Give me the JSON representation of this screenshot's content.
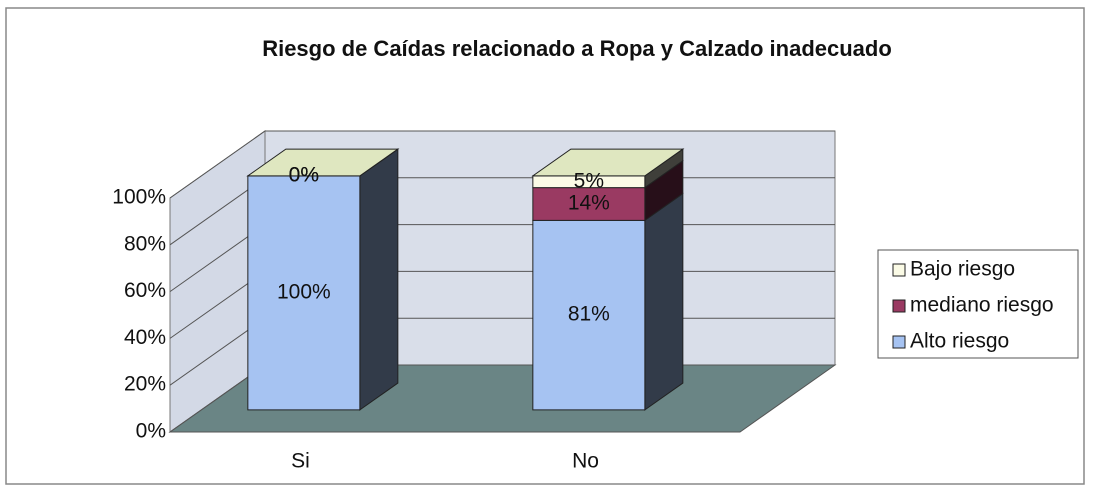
{
  "chart_data": {
    "type": "bar3d_stacked",
    "title": "Riesgo de Caídas relacionado a Ropa y Calzado inadecuado",
    "categories": [
      "Si",
      "No"
    ],
    "series": [
      {
        "name": "Alto riesgo",
        "color": "#a6c3f2",
        "values": [
          100,
          81
        ],
        "value_labels": [
          "100%",
          "81%"
        ]
      },
      {
        "name": "mediano riesgo",
        "color": "#9a3a62",
        "values": [
          0,
          14
        ],
        "value_labels": [
          "0%",
          "14%"
        ]
      },
      {
        "name": "Bajo riesgo",
        "color": "#fbfbe6",
        "values": [
          0,
          5
        ],
        "value_labels": [
          "0%",
          "5%"
        ]
      }
    ],
    "ylim": [
      0,
      100
    ],
    "yticks": [
      {
        "value": 0,
        "label": "0%"
      },
      {
        "value": 20,
        "label": "20%"
      },
      {
        "value": 40,
        "label": "40%"
      },
      {
        "value": 60,
        "label": "60%"
      },
      {
        "value": 80,
        "label": "80%"
      },
      {
        "value": 100,
        "label": "100%"
      }
    ],
    "grid": true,
    "legend": "right"
  }
}
